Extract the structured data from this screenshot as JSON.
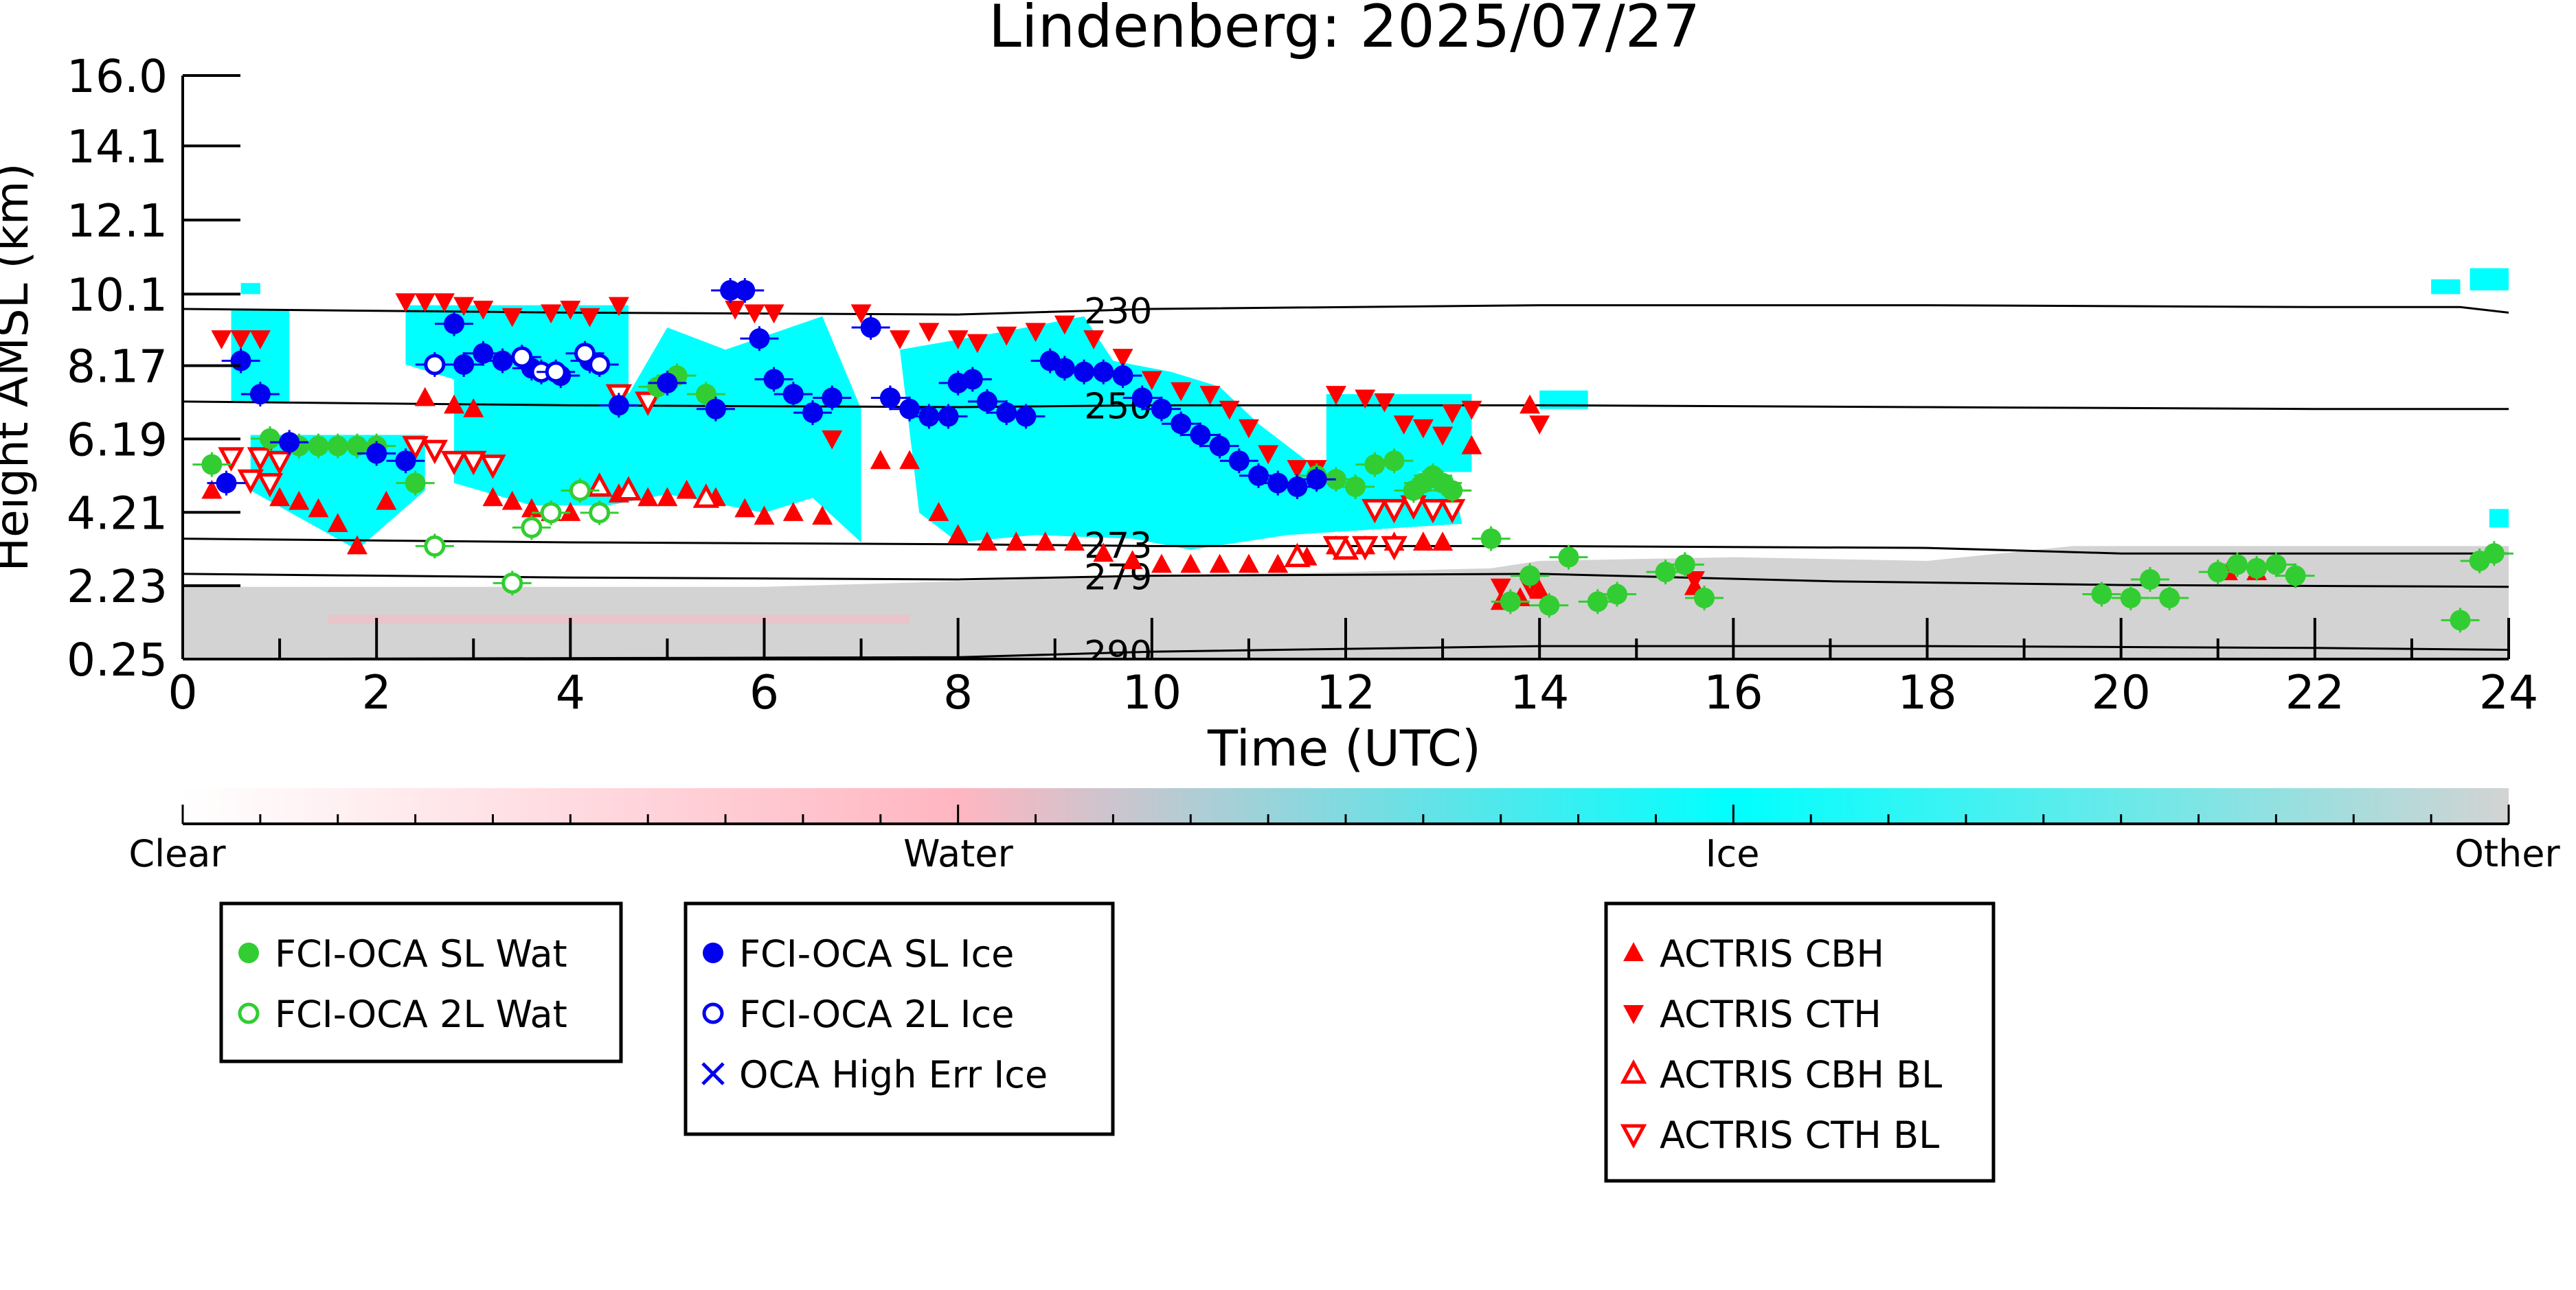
{
  "chart_data": {
    "type": "scatter",
    "title": "Lindenberg: 2025/07/27",
    "xlabel": "Time (UTC)",
    "ylabel": "Height AMSL (km)",
    "xlim": [
      0,
      24
    ],
    "ylim": [
      0.25,
      16.0
    ],
    "x_ticks": [
      "0",
      "2",
      "4",
      "6",
      "8",
      "10",
      "12",
      "14",
      "16",
      "18",
      "20",
      "22",
      "24"
    ],
    "y_ticks": [
      "0.25",
      "2.23",
      "4.21",
      "6.19",
      "8.17",
      "10.1",
      "12.1",
      "14.1",
      "16.0"
    ],
    "y_tick_values": [
      0.25,
      2.23,
      4.21,
      6.19,
      8.17,
      10.1,
      12.1,
      14.1,
      16.0
    ],
    "grid": false,
    "colors": {
      "clear": "#ffffff",
      "water": "#ffb6c1",
      "ice": "#00ffff",
      "other": "#d3d3d3",
      "fci_water": "#32cd32",
      "fci_ice": "#0000ee",
      "actris": "#ff0000",
      "isotherm": "#000000"
    },
    "colorbar": {
      "labels": [
        "Clear",
        "Water",
        "Ice",
        "Other"
      ]
    },
    "isotherms": [
      {
        "label": "230",
        "label_x": 9.3,
        "points": [
          [
            0,
            9.7
          ],
          [
            4,
            9.6
          ],
          [
            8,
            9.55
          ],
          [
            10,
            9.7
          ],
          [
            14,
            9.8
          ],
          [
            18,
            9.8
          ],
          [
            22,
            9.75
          ],
          [
            23.5,
            9.75
          ],
          [
            24,
            9.6
          ]
        ]
      },
      {
        "label": "250",
        "label_x": 9.3,
        "points": [
          [
            0,
            7.2
          ],
          [
            4,
            7.1
          ],
          [
            8,
            7.05
          ],
          [
            10,
            7.1
          ],
          [
            14,
            7.1
          ],
          [
            18,
            7.05
          ],
          [
            22,
            7.0
          ],
          [
            24,
            7.0
          ]
        ]
      },
      {
        "label": "273",
        "label_x": 9.3,
        "points": [
          [
            0,
            3.5
          ],
          [
            4,
            3.4
          ],
          [
            8,
            3.35
          ],
          [
            10,
            3.3
          ],
          [
            14,
            3.3
          ],
          [
            18,
            3.25
          ],
          [
            20,
            3.1
          ],
          [
            22,
            3.1
          ],
          [
            24,
            3.1
          ]
        ]
      },
      {
        "label": "279",
        "label_x": 9.3,
        "points": [
          [
            0,
            2.55
          ],
          [
            4,
            2.45
          ],
          [
            8,
            2.4
          ],
          [
            10,
            2.5
          ],
          [
            14,
            2.55
          ],
          [
            17,
            2.35
          ],
          [
            20,
            2.25
          ],
          [
            24,
            2.2
          ]
        ]
      },
      {
        "label": "290",
        "label_x": 9.3,
        "points": [
          [
            0,
            0.25
          ],
          [
            8,
            0.3
          ],
          [
            10,
            0.45
          ],
          [
            14,
            0.6
          ],
          [
            18,
            0.6
          ],
          [
            22,
            0.55
          ],
          [
            24,
            0.5
          ]
        ]
      }
    ],
    "series": [
      {
        "name": "FCI-OCA SL Wat",
        "marker": "filled-circle",
        "color": "#32cd32",
        "points": [
          [
            0.3,
            5.5
          ],
          [
            0.9,
            6.2
          ],
          [
            1.2,
            6.0
          ],
          [
            1.4,
            6.0
          ],
          [
            1.6,
            6.0
          ],
          [
            1.8,
            6.0
          ],
          [
            2.0,
            6.0
          ],
          [
            2.4,
            5.0
          ],
          [
            4.9,
            7.6
          ],
          [
            5.1,
            7.9
          ],
          [
            5.4,
            7.4
          ],
          [
            11.7,
            5.2
          ],
          [
            11.9,
            5.1
          ],
          [
            12.1,
            4.9
          ],
          [
            12.3,
            5.5
          ],
          [
            12.5,
            5.6
          ],
          [
            12.7,
            4.8
          ],
          [
            12.8,
            5.0
          ],
          [
            12.9,
            5.2
          ],
          [
            13.0,
            5.0
          ],
          [
            13.1,
            4.8
          ],
          [
            13.5,
            3.5
          ],
          [
            13.7,
            1.8
          ],
          [
            13.9,
            2.5
          ],
          [
            14.1,
            1.7
          ],
          [
            14.3,
            3.0
          ],
          [
            14.6,
            1.8
          ],
          [
            14.8,
            2.0
          ],
          [
            15.3,
            2.6
          ],
          [
            15.5,
            2.8
          ],
          [
            15.7,
            1.9
          ],
          [
            19.8,
            2.0
          ],
          [
            20.1,
            1.9
          ],
          [
            20.3,
            2.4
          ],
          [
            20.5,
            1.9
          ],
          [
            21.0,
            2.6
          ],
          [
            21.2,
            2.8
          ],
          [
            21.4,
            2.7
          ],
          [
            21.6,
            2.8
          ],
          [
            21.8,
            2.5
          ],
          [
            23.5,
            1.3
          ],
          [
            23.7,
            2.9
          ],
          [
            23.85,
            3.1
          ]
        ]
      },
      {
        "name": "FCI-OCA 2L Wat",
        "marker": "open-circle",
        "color": "#32cd32",
        "points": [
          [
            2.6,
            3.3
          ],
          [
            3.4,
            2.3
          ],
          [
            3.6,
            3.8
          ],
          [
            3.8,
            4.2
          ],
          [
            4.1,
            4.8
          ],
          [
            4.3,
            4.2
          ]
        ]
      },
      {
        "name": "FCI-OCA SL Ice",
        "marker": "filled-circle",
        "color": "#0000ee",
        "points": [
          [
            0.45,
            5.0
          ],
          [
            0.6,
            8.3
          ],
          [
            0.8,
            7.4
          ],
          [
            1.1,
            6.1
          ],
          [
            2.0,
            5.8
          ],
          [
            2.3,
            5.6
          ],
          [
            2.8,
            9.3
          ],
          [
            2.9,
            8.2
          ],
          [
            3.1,
            8.5
          ],
          [
            3.3,
            8.3
          ],
          [
            3.6,
            8.1
          ],
          [
            3.9,
            7.9
          ],
          [
            4.2,
            8.3
          ],
          [
            4.5,
            7.1
          ],
          [
            5.0,
            7.7
          ],
          [
            5.5,
            7.0
          ],
          [
            5.65,
            10.2
          ],
          [
            5.8,
            10.2
          ],
          [
            5.95,
            8.9
          ],
          [
            6.1,
            7.8
          ],
          [
            6.3,
            7.4
          ],
          [
            6.5,
            6.9
          ],
          [
            6.7,
            7.3
          ],
          [
            7.1,
            9.2
          ],
          [
            7.3,
            7.3
          ],
          [
            7.5,
            7.0
          ],
          [
            7.7,
            6.8
          ],
          [
            7.9,
            6.8
          ],
          [
            8.0,
            7.7
          ],
          [
            8.15,
            7.8
          ],
          [
            8.3,
            7.2
          ],
          [
            8.5,
            6.9
          ],
          [
            8.7,
            6.8
          ],
          [
            8.95,
            8.3
          ],
          [
            9.1,
            8.1
          ],
          [
            9.3,
            8.0
          ],
          [
            9.5,
            8.0
          ],
          [
            9.7,
            7.9
          ],
          [
            9.9,
            7.3
          ],
          [
            10.1,
            7.0
          ],
          [
            10.3,
            6.6
          ],
          [
            10.5,
            6.3
          ],
          [
            10.7,
            6.0
          ],
          [
            10.9,
            5.6
          ],
          [
            11.1,
            5.2
          ],
          [
            11.3,
            5.0
          ],
          [
            11.5,
            4.9
          ],
          [
            11.7,
            5.1
          ]
        ]
      },
      {
        "name": "FCI-OCA 2L Ice",
        "marker": "open-circle",
        "color": "#0000ee",
        "points": [
          [
            2.6,
            8.2
          ],
          [
            3.5,
            8.4
          ],
          [
            3.7,
            8.0
          ],
          [
            3.85,
            8.0
          ],
          [
            4.15,
            8.5
          ],
          [
            4.3,
            8.2
          ]
        ]
      },
      {
        "name": "OCA High Err Ice",
        "marker": "x",
        "color": "#0000ee",
        "points": []
      },
      {
        "name": "ACTRIS CBH",
        "marker": "filled-triangle-up",
        "color": "#ff0000",
        "points": [
          [
            0.3,
            4.8
          ],
          [
            1.0,
            4.6
          ],
          [
            1.2,
            4.5
          ],
          [
            1.4,
            4.3
          ],
          [
            1.6,
            3.9
          ],
          [
            1.8,
            3.3
          ],
          [
            2.1,
            4.5
          ],
          [
            2.5,
            7.3
          ],
          [
            2.8,
            7.1
          ],
          [
            3.0,
            7.0
          ],
          [
            3.2,
            4.6
          ],
          [
            3.4,
            4.5
          ],
          [
            3.6,
            4.3
          ],
          [
            3.8,
            4.2
          ],
          [
            4.0,
            4.2
          ],
          [
            4.5,
            4.7
          ],
          [
            4.8,
            4.6
          ],
          [
            5.0,
            4.6
          ],
          [
            5.2,
            4.8
          ],
          [
            5.5,
            4.6
          ],
          [
            5.8,
            4.3
          ],
          [
            6.0,
            4.1
          ],
          [
            6.3,
            4.2
          ],
          [
            6.6,
            4.1
          ],
          [
            7.2,
            5.6
          ],
          [
            7.5,
            5.6
          ],
          [
            7.8,
            4.2
          ],
          [
            8.0,
            3.6
          ],
          [
            8.3,
            3.4
          ],
          [
            8.6,
            3.4
          ],
          [
            8.9,
            3.4
          ],
          [
            9.2,
            3.4
          ],
          [
            9.5,
            3.1
          ],
          [
            9.8,
            2.9
          ],
          [
            10.1,
            2.8
          ],
          [
            10.4,
            2.8
          ],
          [
            10.7,
            2.8
          ],
          [
            11.0,
            2.8
          ],
          [
            11.3,
            2.8
          ],
          [
            11.6,
            3.0
          ],
          [
            11.9,
            3.3
          ],
          [
            12.2,
            3.3
          ],
          [
            12.5,
            3.4
          ],
          [
            12.8,
            3.4
          ],
          [
            13.0,
            3.4
          ],
          [
            13.3,
            6.0
          ],
          [
            13.6,
            1.8
          ],
          [
            13.8,
            1.9
          ],
          [
            14.0,
            2.1
          ],
          [
            15.6,
            2.2
          ],
          [
            21.1,
            2.6
          ],
          [
            21.4,
            2.6
          ],
          [
            13.9,
            7.1
          ]
        ]
      },
      {
        "name": "ACTRIS CTH",
        "marker": "filled-triangle-down",
        "color": "#ff0000",
        "points": [
          [
            0.4,
            8.9
          ],
          [
            0.6,
            8.9
          ],
          [
            0.8,
            8.9
          ],
          [
            2.3,
            9.9
          ],
          [
            2.5,
            9.9
          ],
          [
            2.7,
            9.9
          ],
          [
            2.9,
            9.8
          ],
          [
            3.1,
            9.7
          ],
          [
            3.4,
            9.5
          ],
          [
            3.8,
            9.6
          ],
          [
            4.0,
            9.7
          ],
          [
            4.2,
            9.5
          ],
          [
            4.5,
            9.8
          ],
          [
            5.7,
            9.7
          ],
          [
            5.9,
            9.6
          ],
          [
            6.1,
            9.6
          ],
          [
            6.7,
            6.2
          ],
          [
            7.0,
            9.6
          ],
          [
            7.4,
            8.9
          ],
          [
            7.7,
            9.1
          ],
          [
            8.0,
            8.9
          ],
          [
            8.2,
            8.8
          ],
          [
            8.5,
            9.0
          ],
          [
            8.8,
            9.1
          ],
          [
            9.1,
            9.3
          ],
          [
            9.4,
            8.9
          ],
          [
            9.7,
            8.4
          ],
          [
            10.0,
            7.8
          ],
          [
            10.3,
            7.5
          ],
          [
            10.6,
            7.4
          ],
          [
            10.8,
            7.0
          ],
          [
            11.0,
            6.5
          ],
          [
            11.2,
            5.8
          ],
          [
            11.5,
            5.4
          ],
          [
            11.7,
            5.4
          ],
          [
            11.9,
            7.4
          ],
          [
            12.2,
            7.3
          ],
          [
            12.4,
            7.2
          ],
          [
            12.6,
            6.6
          ],
          [
            12.8,
            6.5
          ],
          [
            13.0,
            6.3
          ],
          [
            13.1,
            6.9
          ],
          [
            13.3,
            7.0
          ],
          [
            13.6,
            2.2
          ],
          [
            13.9,
            2.2
          ],
          [
            15.6,
            2.4
          ],
          [
            14.0,
            6.6
          ]
        ]
      },
      {
        "name": "ACTRIS CBH BL",
        "marker": "open-triangle-up",
        "color": "#ff0000",
        "points": [
          [
            4.3,
            4.9
          ],
          [
            4.6,
            4.8
          ],
          [
            5.4,
            4.6
          ],
          [
            11.5,
            3.0
          ],
          [
            12.0,
            3.2
          ]
        ]
      },
      {
        "name": "ACTRIS CTH BL",
        "marker": "open-triangle-down",
        "color": "#ff0000",
        "points": [
          [
            0.5,
            5.7
          ],
          [
            0.8,
            5.7
          ],
          [
            1.0,
            5.6
          ],
          [
            0.7,
            5.1
          ],
          [
            0.9,
            5.0
          ],
          [
            2.4,
            6.0
          ],
          [
            2.6,
            5.9
          ],
          [
            2.8,
            5.6
          ],
          [
            3.0,
            5.6
          ],
          [
            3.2,
            5.5
          ],
          [
            4.5,
            7.4
          ],
          [
            4.8,
            7.2
          ],
          [
            12.3,
            4.3
          ],
          [
            12.5,
            4.3
          ],
          [
            12.7,
            4.4
          ],
          [
            12.9,
            4.3
          ],
          [
            13.1,
            4.3
          ],
          [
            11.9,
            3.3
          ],
          [
            12.2,
            3.3
          ],
          [
            12.5,
            3.3
          ]
        ]
      }
    ],
    "legends": [
      {
        "items": [
          {
            "label": "FCI-OCA SL Wat",
            "marker": "filled-circle",
            "color": "#32cd32"
          },
          {
            "label": "FCI-OCA 2L Wat",
            "marker": "open-circle",
            "color": "#32cd32"
          }
        ]
      },
      {
        "items": [
          {
            "label": "FCI-OCA SL Ice",
            "marker": "filled-circle",
            "color": "#0000ee"
          },
          {
            "label": "FCI-OCA 2L Ice",
            "marker": "open-circle",
            "color": "#0000ee"
          },
          {
            "label": "OCA High Err Ice",
            "marker": "x",
            "color": "#0000ee"
          }
        ]
      },
      {
        "items": [
          {
            "label": "ACTRIS CBH",
            "marker": "filled-triangle-up",
            "color": "#ff0000"
          },
          {
            "label": "ACTRIS CTH",
            "marker": "filled-triangle-down",
            "color": "#ff0000"
          },
          {
            "label": "ACTRIS CBH BL",
            "marker": "open-triangle-up",
            "color": "#ff0000"
          },
          {
            "label": "ACTRIS CTH BL",
            "marker": "open-triangle-down",
            "color": "#ff0000"
          }
        ]
      }
    ]
  }
}
